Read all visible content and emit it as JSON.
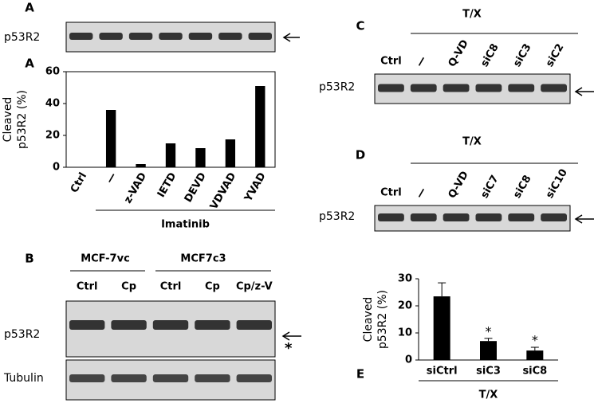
{
  "chart_data": [
    {
      "type": "bar",
      "panel_label": "A",
      "y_label": [
        "Cleaved",
        "p53R2 (%)"
      ],
      "categories": [
        "Ctrl",
        "—",
        "z-VAD",
        "IETD",
        "DEVD",
        "VDVAD",
        "YVAD"
      ],
      "values": [
        0,
        36,
        2,
        15,
        12,
        17.5,
        51
      ],
      "color": "#000000",
      "ylim": [
        0,
        60
      ],
      "yticks": [
        0,
        20,
        40,
        60
      ],
      "group_label": "Imatinib"
    },
    {
      "type": "errorbar",
      "panel_label": "E",
      "y_label": [
        "Cleaved",
        "p53R2 (%)"
      ],
      "categories": [
        "siCtrl",
        "siC3",
        "siC8"
      ],
      "values": [
        23.5,
        7,
        3.5
      ],
      "errors": [
        5,
        1,
        1.2
      ],
      "color": "#000000",
      "annotations": [
        null,
        "*",
        "*"
      ],
      "ylim": [
        0,
        30
      ],
      "yticks": [
        0,
        10,
        20,
        30
      ],
      "group_label": "T/X"
    }
  ],
  "blots": [
    {
      "label": "A",
      "rows": [
        "p53R2"
      ],
      "lane_count": 7
    },
    {
      "label": "B",
      "groups": [
        "MCF-7vc",
        "MCF7c3"
      ],
      "lanes": [
        "Ctrl",
        "Cp",
        "Ctrl",
        "Cp",
        "Cp/z-V"
      ],
      "rows": [
        "p53R2",
        "Tubulin"
      ],
      "marker": "*"
    },
    {
      "label": "C",
      "group": "T/X",
      "lanes": [
        "Ctrl",
        "—",
        "Q-VD",
        "siC8",
        "siC3",
        "siC2"
      ],
      "rows": [
        "p53R2"
      ]
    },
    {
      "label": "D",
      "group": "T/X",
      "lanes": [
        "Ctrl",
        "—",
        "Q-VD",
        "siC7",
        "siC8",
        "siC10"
      ],
      "rows": [
        "p53R2"
      ]
    }
  ]
}
